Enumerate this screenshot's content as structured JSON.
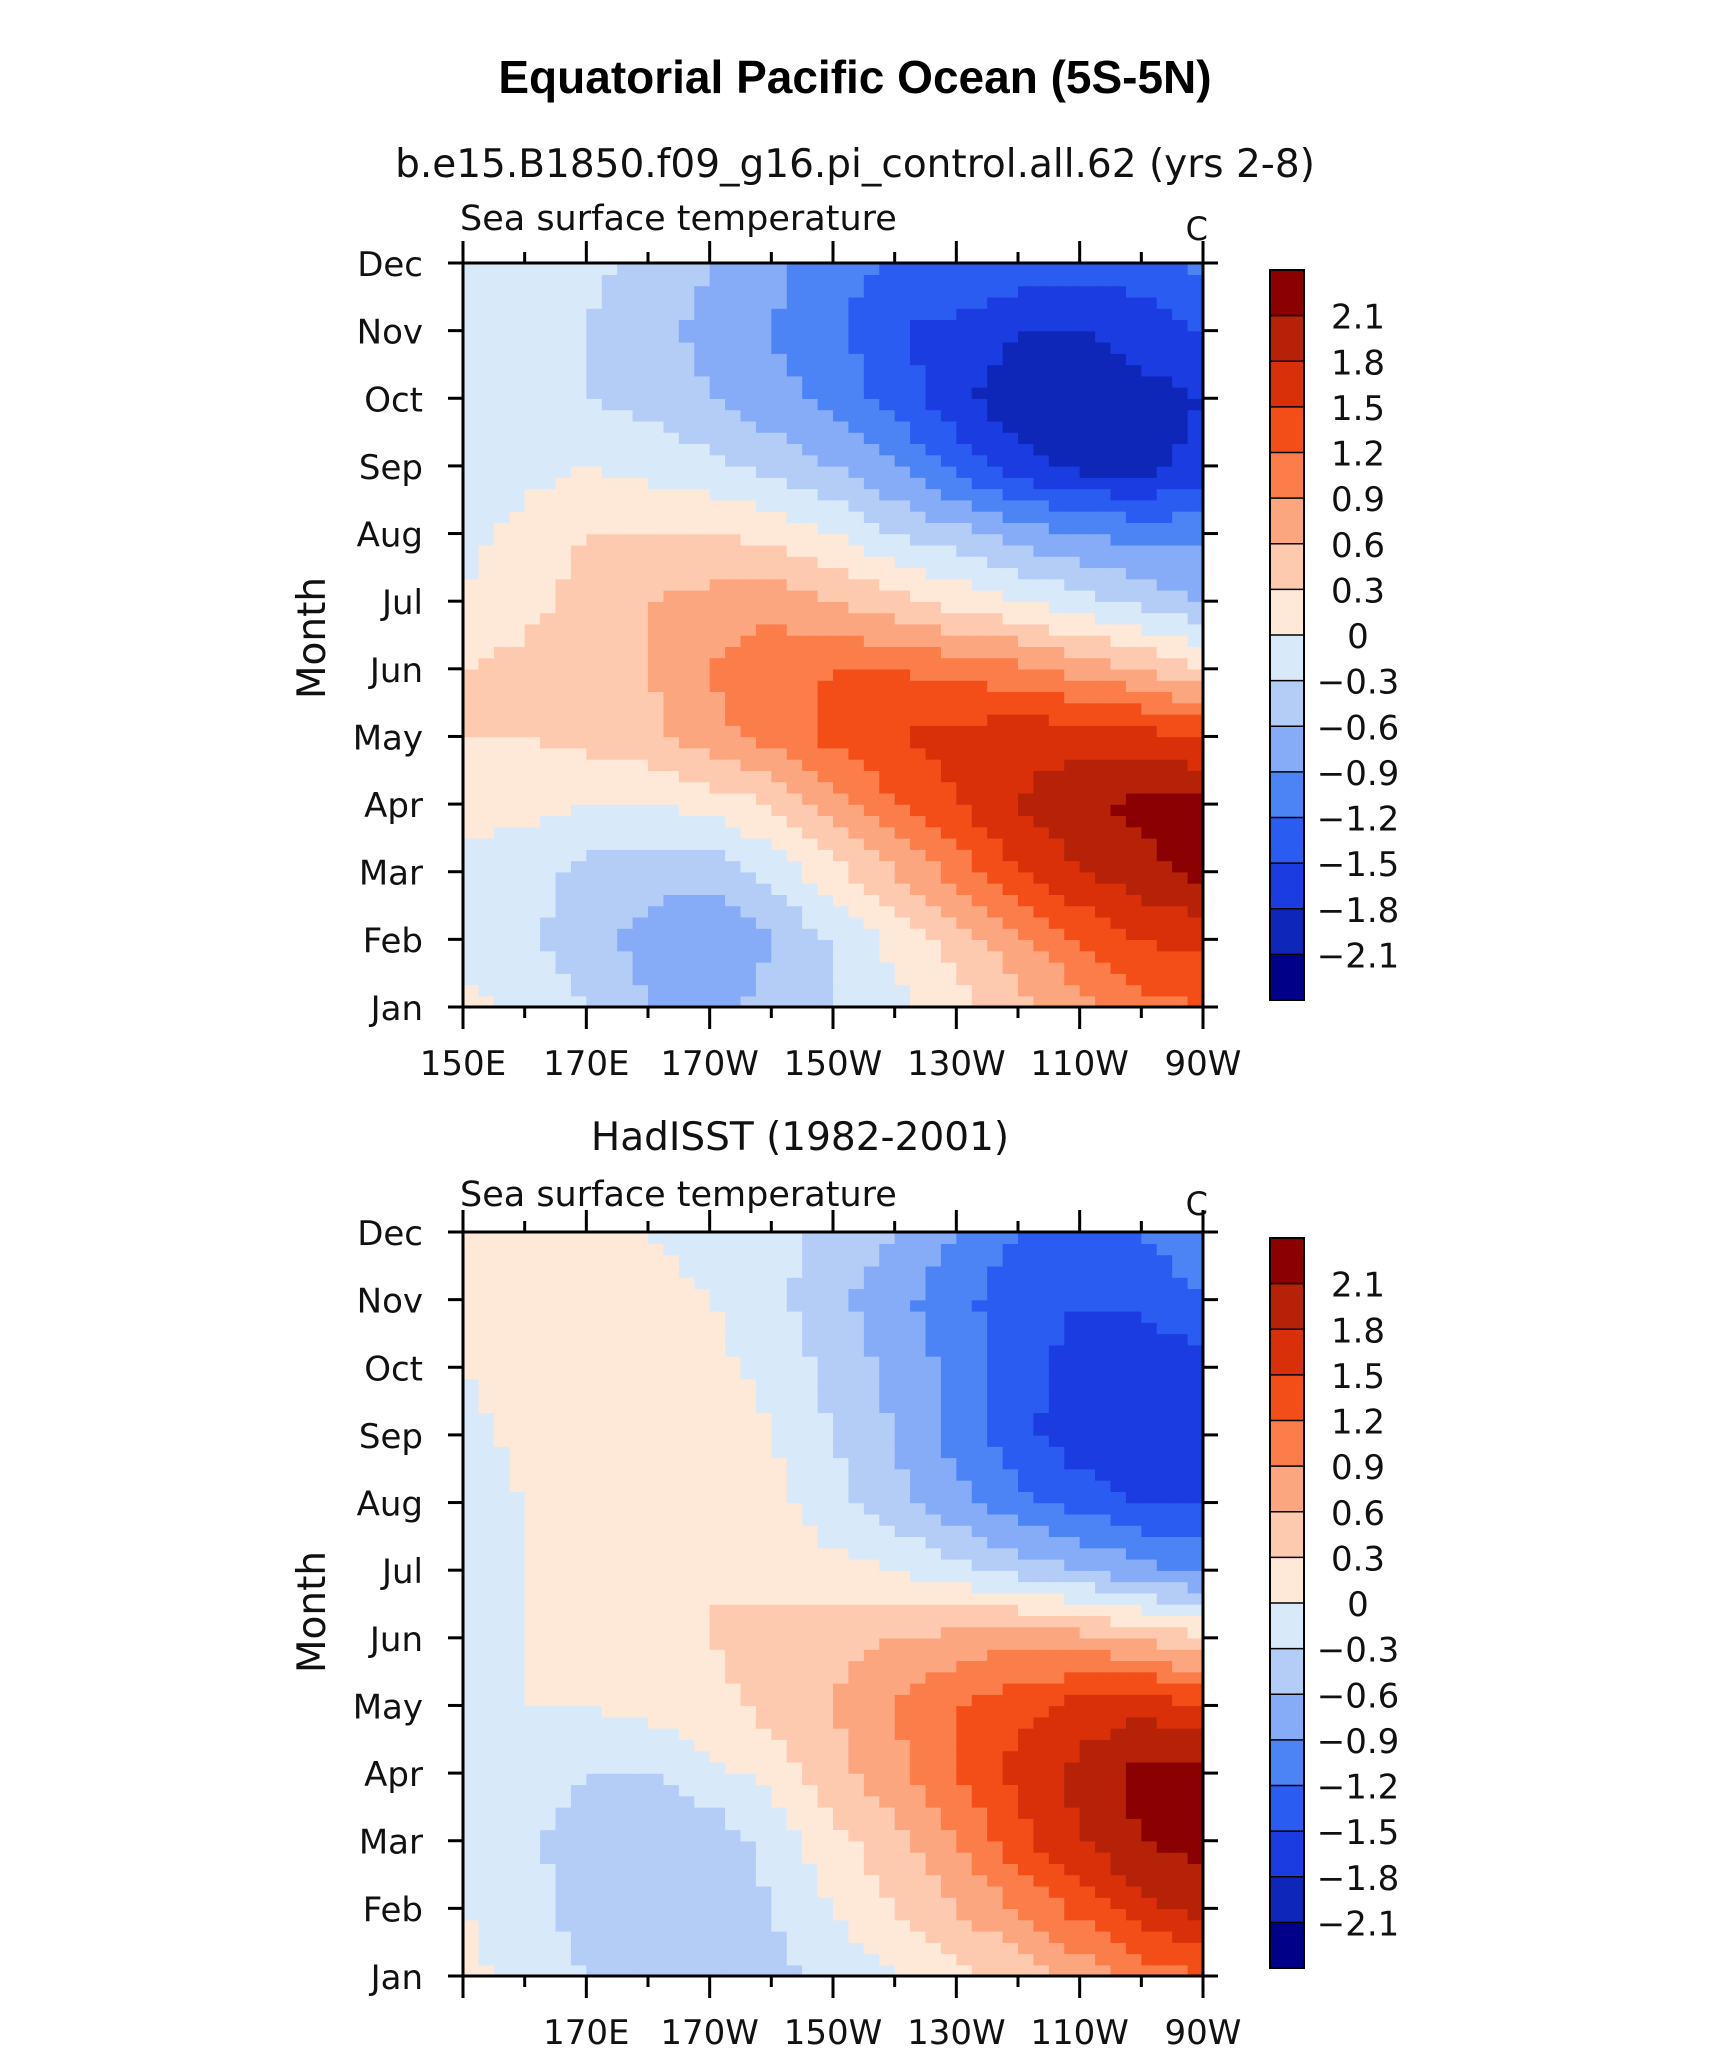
{
  "page": {
    "title": "Equatorial Pacific Ocean (5S-5N)"
  },
  "colorbar": {
    "levels": [
      "2.1",
      "1.8",
      "1.5",
      "1.2",
      "0.9",
      "0.6",
      "0.3",
      "0",
      "-0.3",
      "-0.6",
      "-0.9",
      "-1.2",
      "-1.5",
      "-1.8",
      "-2.1"
    ],
    "colors": [
      "#8b0000",
      "#b52208",
      "#d9300a",
      "#f44e18",
      "#fa7d4a",
      "#fca680",
      "#fdcab0",
      "#fee8d8",
      "#d8eaf9",
      "#b3cdf7",
      "#86acf7",
      "#4d84f5",
      "#2b5cf2",
      "#1a3ce0",
      "#0e27b8",
      "#000088"
    ]
  },
  "chart_data": [
    {
      "type": "heatmap",
      "name": "model",
      "subtitle": "b.e15.B1850.f09_g16.pi_control.all.62 (yrs 2-8)",
      "left_label": "Sea surface temperature",
      "units": "C",
      "ylabel": "Month",
      "yticks": [
        "Jan",
        "Feb",
        "Mar",
        "Apr",
        "May",
        "Jun",
        "Jul",
        "Aug",
        "Sep",
        "Oct",
        "Nov",
        "Dec"
      ],
      "xticks": [
        "150E",
        "170E",
        "170W",
        "150W",
        "130W",
        "110W",
        "90W"
      ],
      "xtick_lon": [
        150,
        170,
        190,
        210,
        230,
        250,
        270
      ],
      "xlim": [
        150,
        270
      ],
      "contour_levels": [
        -2.1,
        -1.8,
        -1.5,
        -1.2,
        -0.9,
        -0.6,
        -0.3,
        0,
        0.3,
        0.6,
        0.9,
        1.2,
        1.5,
        1.8,
        2.1
      ],
      "lons": [
        150,
        160,
        170,
        180,
        190,
        200,
        210,
        220,
        230,
        240,
        250,
        260,
        270
      ],
      "months": [
        "Jan",
        "Feb",
        "Mar",
        "Apr",
        "May",
        "Jun",
        "Jul",
        "Aug",
        "Sep",
        "Oct",
        "Nov",
        "Dec"
      ],
      "values": [
        [
          0.1,
          -0.1,
          -0.3,
          -0.6,
          -0.7,
          -0.5,
          -0.3,
          -0.1,
          0.2,
          0.5,
          0.8,
          1.1,
          1.2
        ],
        [
          -0.1,
          -0.2,
          -0.5,
          -0.7,
          -0.9,
          -0.6,
          -0.3,
          0.1,
          0.4,
          0.8,
          1.2,
          1.5,
          1.6
        ],
        [
          -0.1,
          -0.2,
          -0.4,
          -0.5,
          -0.5,
          -0.2,
          0.2,
          0.6,
          1.0,
          1.5,
          1.8,
          2.0,
          2.2
        ],
        [
          0.1,
          0.1,
          0.0,
          0.0,
          0.1,
          0.3,
          0.7,
          1.2,
          1.5,
          1.8,
          2.0,
          2.2,
          2.2
        ],
        [
          0.3,
          0.3,
          0.4,
          0.5,
          0.8,
          1.0,
          1.3,
          1.5,
          1.6,
          1.7,
          1.7,
          1.6,
          1.5
        ],
        [
          0.3,
          0.4,
          0.5,
          0.6,
          0.9,
          1.1,
          1.2,
          1.2,
          1.1,
          1.0,
          0.8,
          0.6,
          0.3
        ],
        [
          0.0,
          0.2,
          0.4,
          0.6,
          0.7,
          0.8,
          0.6,
          0.4,
          0.2,
          0.0,
          -0.2,
          -0.4,
          -0.6
        ],
        [
          -0.1,
          0.1,
          0.3,
          0.3,
          0.3,
          0.2,
          0.0,
          -0.3,
          -0.5,
          -0.7,
          -0.9,
          -1.0,
          -1.0
        ],
        [
          -0.2,
          -0.1,
          0.0,
          -0.1,
          -0.2,
          -0.4,
          -0.6,
          -0.9,
          -1.3,
          -1.7,
          -1.9,
          -1.9,
          -1.7
        ],
        [
          -0.2,
          -0.2,
          -0.3,
          -0.4,
          -0.6,
          -0.8,
          -1.0,
          -1.3,
          -1.7,
          -2.0,
          -2.0,
          -1.9,
          -1.8
        ],
        [
          -0.1,
          -0.2,
          -0.3,
          -0.5,
          -0.7,
          -0.9,
          -1.1,
          -1.5,
          -1.6,
          -1.8,
          -1.8,
          -1.7,
          -1.5
        ],
        [
          0.0,
          -0.1,
          -0.2,
          -0.4,
          -0.6,
          -0.8,
          -1.1,
          -1.2,
          -1.2,
          -1.3,
          -1.4,
          -1.3,
          -1.1
        ]
      ]
    },
    {
      "type": "heatmap",
      "name": "observed",
      "subtitle": "HadISST (1982-2001)",
      "left_label": "Sea surface temperature",
      "units": "C",
      "ylabel": "Month",
      "yticks": [
        "Jan",
        "Feb",
        "Mar",
        "Apr",
        "May",
        "Jun",
        "Jul",
        "Aug",
        "Sep",
        "Oct",
        "Nov",
        "Dec"
      ],
      "xticks": [
        "170E",
        "170W",
        "150W",
        "130W",
        "110W",
        "90W"
      ],
      "xtick_lon": [
        170,
        190,
        210,
        230,
        250,
        270
      ],
      "xlim": [
        150,
        270
      ],
      "contour_levels": [
        -2.1,
        -1.8,
        -1.5,
        -1.2,
        -0.9,
        -0.6,
        -0.3,
        0,
        0.3,
        0.6,
        0.9,
        1.2,
        1.5,
        1.8,
        2.1
      ],
      "lons": [
        150,
        160,
        170,
        180,
        190,
        200,
        210,
        220,
        230,
        240,
        250,
        260,
        270
      ],
      "months": [
        "Jan",
        "Feb",
        "Mar",
        "Apr",
        "May",
        "Jun",
        "Jul",
        "Aug",
        "Sep",
        "Oct",
        "Nov",
        "Dec"
      ],
      "values": [
        [
          0.1,
          -0.1,
          -0.3,
          -0.5,
          -0.5,
          -0.4,
          -0.2,
          0.0,
          0.2,
          0.4,
          0.7,
          1.0,
          1.2
        ],
        [
          0.0,
          -0.2,
          -0.4,
          -0.6,
          -0.5,
          -0.3,
          0.0,
          0.3,
          0.6,
          0.9,
          1.3,
          1.7,
          1.9
        ],
        [
          -0.1,
          -0.2,
          -0.5,
          -0.6,
          -0.5,
          -0.2,
          0.2,
          0.5,
          0.9,
          1.4,
          1.8,
          2.1,
          2.2
        ],
        [
          -0.1,
          -0.1,
          -0.3,
          -0.3,
          -0.1,
          0.1,
          0.5,
          0.8,
          1.2,
          1.6,
          1.9,
          2.2,
          2.2
        ],
        [
          -0.1,
          0.0,
          0.0,
          0.1,
          0.2,
          0.4,
          0.6,
          0.9,
          1.2,
          1.4,
          1.6,
          1.7,
          1.5
        ],
        [
          -0.1,
          0.0,
          0.1,
          0.2,
          0.3,
          0.4,
          0.5,
          0.6,
          0.7,
          0.8,
          0.7,
          0.6,
          0.3
        ],
        [
          -0.1,
          0.0,
          0.1,
          0.2,
          0.3,
          0.2,
          0.1,
          0.0,
          -0.2,
          -0.4,
          -0.6,
          -0.8,
          -1.0
        ],
        [
          -0.2,
          0.0,
          0.2,
          0.2,
          0.2,
          0.1,
          -0.2,
          -0.5,
          -0.8,
          -1.1,
          -1.3,
          -1.5,
          -1.5
        ],
        [
          -0.1,
          0.1,
          0.2,
          0.3,
          0.2,
          0.0,
          -0.3,
          -0.6,
          -1.0,
          -1.4,
          -1.7,
          -1.8,
          -1.7
        ],
        [
          0.0,
          0.1,
          0.2,
          0.2,
          0.1,
          -0.1,
          -0.4,
          -0.7,
          -1.0,
          -1.4,
          -1.6,
          -1.8,
          -1.6
        ],
        [
          0.0,
          0.1,
          0.1,
          0.1,
          0.0,
          -0.2,
          -0.5,
          -0.8,
          -1.1,
          -1.4,
          -1.5,
          -1.4,
          -1.2
        ],
        [
          0.0,
          0.1,
          0.1,
          0.0,
          -0.1,
          -0.2,
          -0.4,
          -0.6,
          -0.9,
          -1.2,
          -1.3,
          -1.2,
          -1.0
        ]
      ]
    }
  ]
}
